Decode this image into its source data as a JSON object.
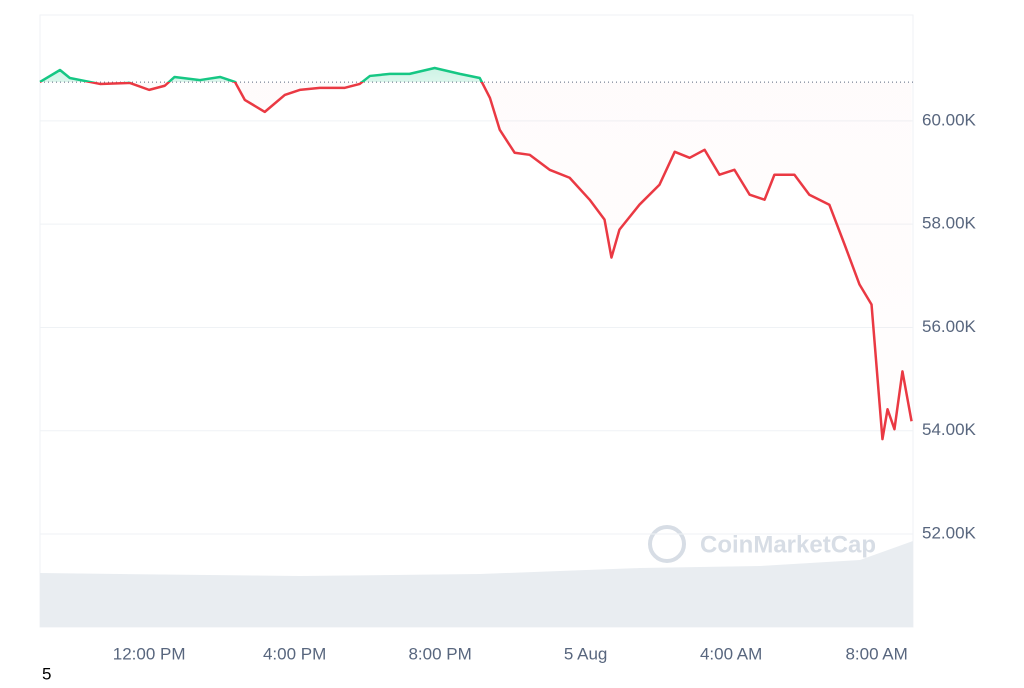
{
  "chart_data": {
    "type": "line",
    "x": [
      9.0,
      9.55,
      9.82,
      10.37,
      10.65,
      11.47,
      12.0,
      12.43,
      12.7,
      13.4,
      13.95,
      14.36,
      14.63,
      15.18,
      15.73,
      16.14,
      16.69,
      17.38,
      17.79,
      18.07,
      18.62,
      19.16,
      19.85,
      20.54,
      21.09,
      21.37,
      21.64,
      22.05,
      22.46,
      23.01,
      23.56,
      24.11,
      24.52,
      24.71,
      24.93,
      25.48,
      26.03,
      26.45,
      26.86,
      27.27,
      27.68,
      28.09,
      28.51,
      28.92,
      29.19,
      29.74,
      30.15,
      30.7,
      31.12,
      31.53,
      31.86,
      32.16,
      32.3,
      32.49,
      32.71,
      32.96
    ],
    "series": [
      {
        "values": [
          60754,
          60985,
          60830,
          60754,
          60715,
          60735,
          60600,
          60680,
          60850,
          60790,
          60850,
          60754,
          60406,
          60174,
          60502,
          60600,
          60640,
          60640,
          60715,
          60870,
          60910,
          60910,
          61024,
          60910,
          60830,
          60444,
          59826,
          59382,
          59343,
          59053,
          58899,
          58474,
          58087,
          57353,
          57894,
          58377,
          58763,
          59401,
          59285,
          59440,
          58957,
          59053,
          58570,
          58474,
          58957,
          58957,
          58570,
          58377,
          57604,
          56831,
          56445,
          53837,
          54416,
          54030,
          55150,
          54184
        ]
      }
    ],
    "baseline": 60750,
    "up_color": "#16c784",
    "down_color": "#ea3943",
    "xlim": [
      9,
      33
    ],
    "xticks": [
      {
        "value": 12,
        "label": "12:00 PM"
      },
      {
        "value": 16,
        "label": "4:00 PM"
      },
      {
        "value": 20,
        "label": "8:00 PM"
      },
      {
        "value": 24,
        "label": "5 Aug"
      },
      {
        "value": 28,
        "label": "4:00 AM"
      },
      {
        "value": 32,
        "label": "8:00 AM"
      }
    ],
    "ylim": [
      50200,
      62050
    ],
    "yticks": [
      {
        "value": 52000,
        "label": "52.00K"
      },
      {
        "value": 54000,
        "label": "54.00K"
      },
      {
        "value": 56000,
        "label": "56.00K"
      },
      {
        "value": 58000,
        "label": "58.00K"
      },
      {
        "value": 60000,
        "label": "60.00K"
      }
    ],
    "grid": true,
    "watermark": "CoinMarketCap",
    "footnote": "5"
  }
}
